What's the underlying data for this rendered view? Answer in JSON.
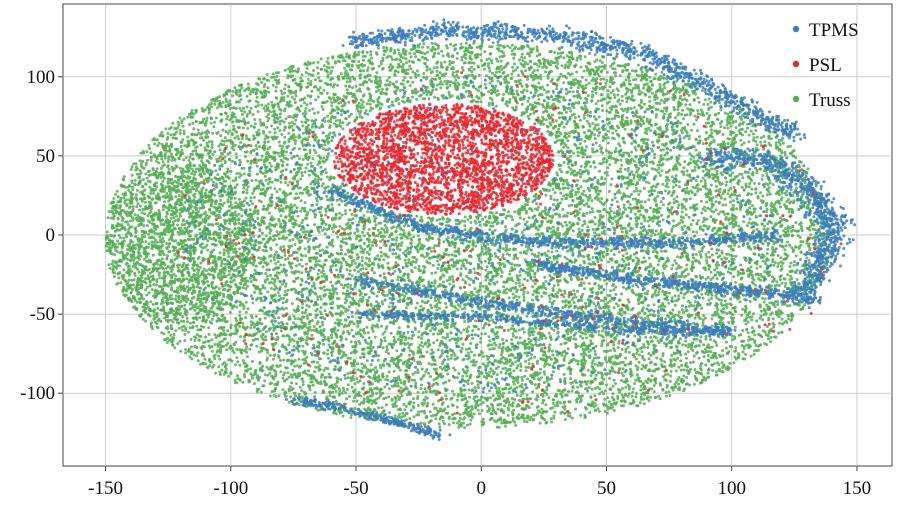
{
  "chart_data": {
    "type": "scatter",
    "title": "",
    "xlabel": "",
    "ylabel": "",
    "xlim": [
      -167,
      164
    ],
    "ylim": [
      -146,
      146
    ],
    "xticks": [
      -150,
      -100,
      -50,
      0,
      50,
      100,
      150
    ],
    "yticks": [
      -100,
      -50,
      0,
      50,
      100
    ],
    "xtick_labels": [
      "-150",
      "-100",
      "-50",
      "0",
      "50",
      "100",
      "150"
    ],
    "ytick_labels": [
      "-100",
      "-50",
      "0",
      "50",
      "100"
    ],
    "grid": true,
    "legend_position": "top-right",
    "series": [
      {
        "name": "TPMS",
        "color": "#3b7dbd",
        "regions": [
          {
            "shape": "curve",
            "path": [
              [
                -52,
                122
              ],
              [
                -10,
                130
              ],
              [
                30,
                126
              ],
              [
                65,
                115
              ],
              [
                95,
                90
              ],
              [
                125,
                63
              ]
            ],
            "width": 8,
            "n": 1100
          },
          {
            "shape": "curve",
            "path": [
              [
                90,
                48
              ],
              [
                115,
                48
              ],
              [
                130,
                30
              ],
              [
                142,
                5
              ],
              [
                135,
                -20
              ],
              [
                125,
                -40
              ]
            ],
            "width": 10,
            "n": 800
          },
          {
            "shape": "curve",
            "path": [
              [
                -60,
                28
              ],
              [
                -25,
                5
              ],
              [
                25,
                -5
              ],
              [
                80,
                -5
              ],
              [
                120,
                0
              ]
            ],
            "width": 5,
            "n": 700
          },
          {
            "shape": "curve",
            "path": [
              [
                -50,
                -28
              ],
              [
                10,
                -45
              ],
              [
                60,
                -55
              ],
              [
                100,
                -60
              ]
            ],
            "width": 5,
            "n": 500
          },
          {
            "shape": "curve",
            "path": [
              [
                -50,
                -50
              ],
              [
                0,
                -52
              ],
              [
                60,
                -60
              ],
              [
                100,
                -62
              ]
            ],
            "width": 4,
            "n": 400
          },
          {
            "shape": "curve",
            "path": [
              [
                20,
                -18
              ],
              [
                60,
                -28
              ],
              [
                105,
                -35
              ],
              [
                135,
                -40
              ]
            ],
            "width": 5,
            "n": 500
          },
          {
            "shape": "curve",
            "path": [
              [
                -75,
                -104
              ],
              [
                -55,
                -110
              ],
              [
                -30,
                -120
              ],
              [
                -15,
                -128
              ]
            ],
            "width": 4,
            "n": 260
          },
          {
            "shape": "ellipse",
            "cx": 0,
            "cy": 0,
            "rx": 120,
            "ry": 100,
            "n": 700
          }
        ]
      },
      {
        "name": "PSL",
        "color": "#e8282e",
        "regions": [
          {
            "shape": "ellipse",
            "cx": -15,
            "cy": 48,
            "rx": 44,
            "ry": 35,
            "n": 2700
          },
          {
            "shape": "ellipse",
            "cx": 10,
            "cy": -5,
            "rx": 135,
            "ry": 110,
            "n": 260
          }
        ]
      },
      {
        "name": "Truss",
        "color": "#55ad55",
        "regions": [
          {
            "shape": "ellipse",
            "cx": -5,
            "cy": 0,
            "rx": 145,
            "ry": 122,
            "n": 14000
          },
          {
            "shape": "ellipse",
            "cx": -120,
            "cy": -5,
            "rx": 30,
            "ry": 50,
            "n": 900
          }
        ]
      }
    ]
  }
}
